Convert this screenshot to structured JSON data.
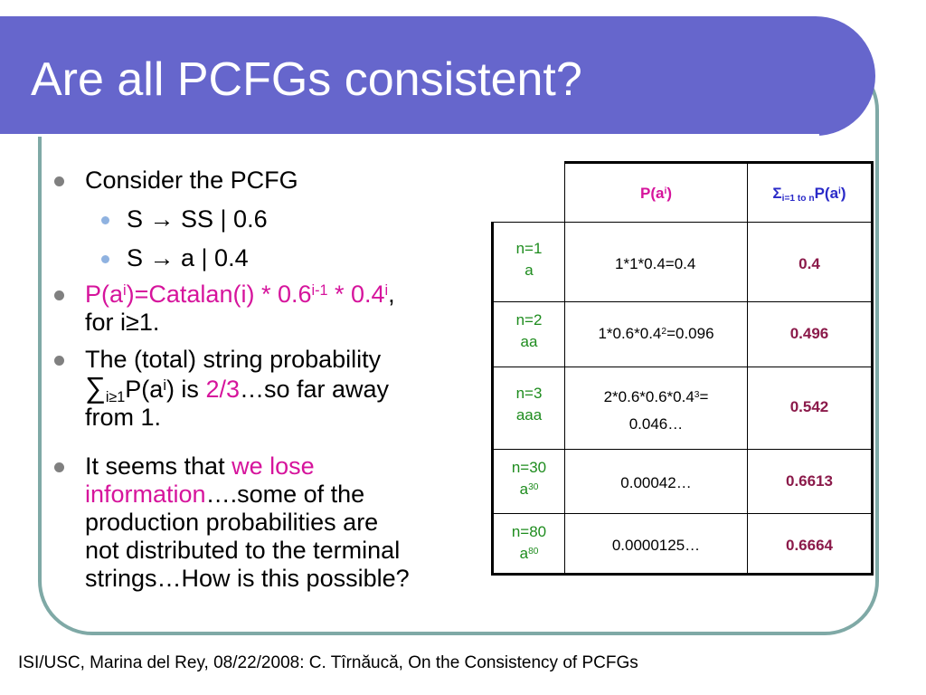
{
  "slide": {
    "title": "Are all PCFGs consistent?",
    "footer": "ISI/USC, Marina del Rey, 08/22/2008: C. Tîrnăucă, On the Consistency of PCFGs"
  },
  "bullets": {
    "b1": "Consider the PCFG",
    "rule1_left": "S ",
    "rule1_arrow": "→",
    "rule1_right": " SS | 0.6",
    "rule2_left": "S ",
    "rule2_arrow": "→",
    "rule2_right": " a | 0.4",
    "b2_part1": "P(a",
    "b2_sup1": "i",
    "b2_part2": ")=Catalan(i) * 0.6",
    "b2_sup2": "i-1",
    "b2_part3": " * 0.4",
    "b2_sup3": "i",
    "b2_part4": ",",
    "b2_line2": "for i≥1.",
    "b3_line1": "The (total) string probability",
    "b3_sigma": "∑",
    "b3_sub": "i≥1",
    "b3_mid1": "P(a",
    "b3_sup": "i",
    "b3_mid2": ") is ",
    "b3_frac": "2/3",
    "b3_mid3": "…so far away",
    "b3_line3": "from 1.",
    "b4_part1": "It seems that ",
    "b4_pink1": "we lose",
    "b4_pink2": "information",
    "b4_part2": "….some of the",
    "b4_line3": "production probabilities are",
    "b4_line4": "not distributed to the terminal",
    "b4_line5": "strings…How is this possible?"
  },
  "table": {
    "header_p_pre": "P(a",
    "header_p_sup": "i",
    "header_p_post": ")",
    "header_sum_sigma": "Σ",
    "header_sum_sub": "i=1 to n",
    "header_sum_pre": "P(a",
    "header_sum_sup": "i",
    "header_sum_post": ")",
    "rows": [
      {
        "n": "n=1",
        "word": "a",
        "word_sup": "",
        "p_line1": "1*1*0.4=0.4",
        "p_sup": "",
        "p_line1b": "",
        "p_line2": "",
        "sum": "0.4"
      },
      {
        "n": "n=2",
        "word": "aa",
        "word_sup": "",
        "p_line1": "1*0.6*0.4",
        "p_sup": "2",
        "p_line1b": "=0.096",
        "p_line2": "",
        "sum": "0.496"
      },
      {
        "n": "n=3",
        "word": "aaa",
        "word_sup": "",
        "p_line1": "2*0.6*0.6*0.4",
        "p_sup": "3",
        "p_line1b": "=",
        "p_line2": "0.046…",
        "sum": "0.542"
      },
      {
        "n": "n=30",
        "word": "a",
        "word_sup": "30",
        "p_line1": "0.00042…",
        "p_sup": "",
        "p_line1b": "",
        "p_line2": "",
        "sum": "0.6613"
      },
      {
        "n": "n=80",
        "word": "a",
        "word_sup": "80",
        "p_line1": "0.0000125…",
        "p_sup": "",
        "p_line1b": "",
        "p_line2": "",
        "sum": "0.6664"
      }
    ]
  },
  "colors": {
    "title_bar": "#6666CC",
    "frame": "#7FA9A6",
    "pink": "#D6149C",
    "row_label_green": "#1E8C1E",
    "sum_value": "#8B1A4A",
    "sum_header_blue": "#2A2AC8"
  }
}
